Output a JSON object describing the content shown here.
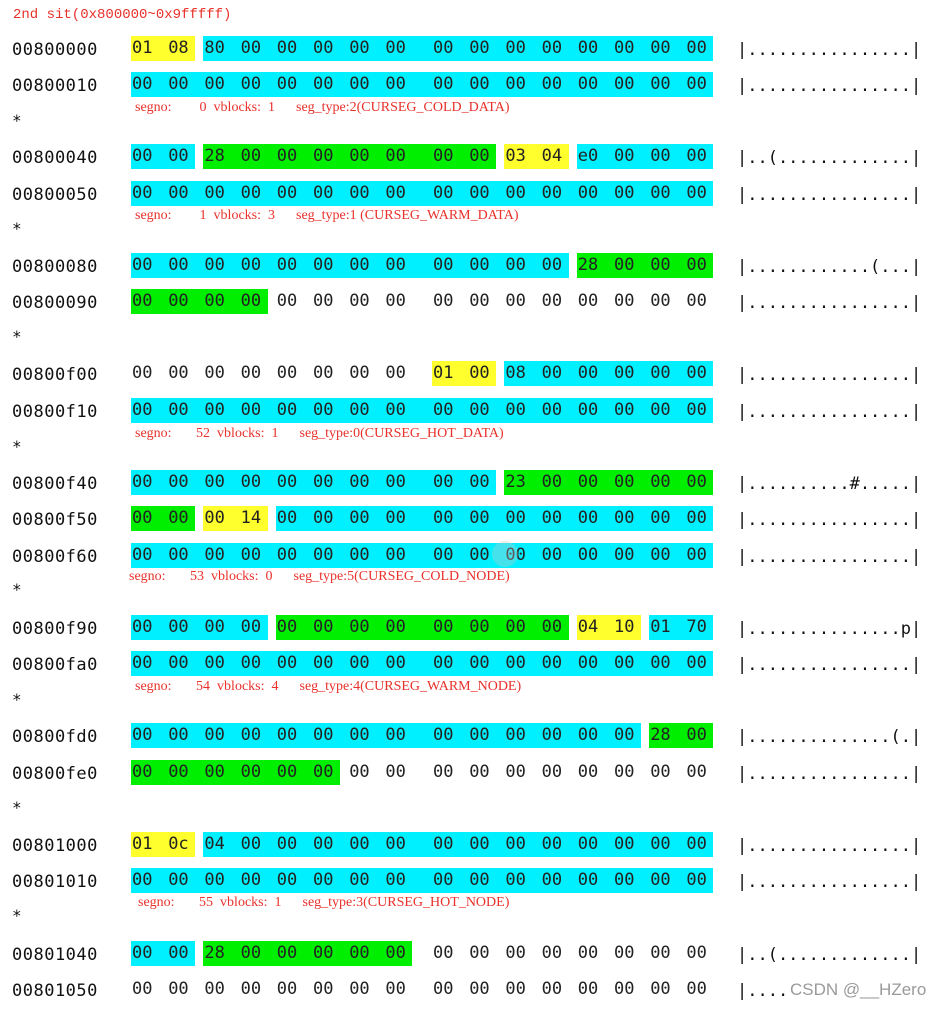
{
  "title": "2nd sit(0x800000~0x9fffff)",
  "star": "*",
  "watermark": "CSDN @__HZero",
  "colors": {
    "c": "#00f0ff",
    "g": "#00ee00",
    "y": "#ffff2e",
    "annotation": "#e8312a"
  },
  "rows": [
    {
      "addr": "00800000",
      "bytes": [
        "01",
        "08",
        "80",
        "00",
        "00",
        "00",
        "00",
        "00",
        "00",
        "00",
        "00",
        "00",
        "00",
        "00",
        "00",
        "00"
      ],
      "hl": "yycccccccccccccc",
      "ascii": "|................|"
    },
    {
      "addr": "00800010",
      "bytes": [
        "00",
        "00",
        "00",
        "00",
        "00",
        "00",
        "00",
        "00",
        "00",
        "00",
        "00",
        "00",
        "00",
        "00",
        "00",
        "00"
      ],
      "hl": "cccccccccccccccc",
      "ascii": "|................|"
    },
    {
      "addr": "00800040",
      "bytes": [
        "00",
        "00",
        "28",
        "00",
        "00",
        "00",
        "00",
        "00",
        "00",
        "00",
        "03",
        "04",
        "e0",
        "00",
        "00",
        "00"
      ],
      "hl": "ccggggggggyycccc",
      "ascii": "|..(.............|"
    },
    {
      "addr": "00800050",
      "bytes": [
        "00",
        "00",
        "00",
        "00",
        "00",
        "00",
        "00",
        "00",
        "00",
        "00",
        "00",
        "00",
        "00",
        "00",
        "00",
        "00"
      ],
      "hl": "cccccccccccccccc",
      "ascii": "|................|"
    },
    {
      "addr": "00800080",
      "bytes": [
        "00",
        "00",
        "00",
        "00",
        "00",
        "00",
        "00",
        "00",
        "00",
        "00",
        "00",
        "00",
        "28",
        "00",
        "00",
        "00"
      ],
      "hl": "ccccccccccccgggg",
      "ascii": "|............(...|"
    },
    {
      "addr": "00800090",
      "bytes": [
        "00",
        "00",
        "00",
        "00",
        "00",
        "00",
        "00",
        "00",
        "00",
        "00",
        "00",
        "00",
        "00",
        "00",
        "00",
        "00"
      ],
      "hl": "gggg............",
      "ascii": "|................|"
    },
    {
      "addr": "00800f00",
      "bytes": [
        "00",
        "00",
        "00",
        "00",
        "00",
        "00",
        "00",
        "00",
        "01",
        "00",
        "08",
        "00",
        "00",
        "00",
        "00",
        "00"
      ],
      "hl": "........yycccccc",
      "ascii": "|................|"
    },
    {
      "addr": "00800f10",
      "bytes": [
        "00",
        "00",
        "00",
        "00",
        "00",
        "00",
        "00",
        "00",
        "00",
        "00",
        "00",
        "00",
        "00",
        "00",
        "00",
        "00"
      ],
      "hl": "cccccccccccccccc",
      "ascii": "|................|"
    },
    {
      "addr": "00800f40",
      "bytes": [
        "00",
        "00",
        "00",
        "00",
        "00",
        "00",
        "00",
        "00",
        "00",
        "00",
        "23",
        "00",
        "00",
        "00",
        "00",
        "00"
      ],
      "hl": "ccccccccccgggggg",
      "ascii": "|..........#.....|"
    },
    {
      "addr": "00800f50",
      "bytes": [
        "00",
        "00",
        "00",
        "14",
        "00",
        "00",
        "00",
        "00",
        "00",
        "00",
        "00",
        "00",
        "00",
        "00",
        "00",
        "00"
      ],
      "hl": "ggyycccccccccccc",
      "ascii": "|................|"
    },
    {
      "addr": "00800f60",
      "bytes": [
        "00",
        "00",
        "00",
        "00",
        "00",
        "00",
        "00",
        "00",
        "00",
        "00",
        "00",
        "00",
        "00",
        "00",
        "00",
        "00"
      ],
      "hl": "cccccccccccccccc",
      "ascii": "|................|"
    },
    {
      "addr": "00800f90",
      "bytes": [
        "00",
        "00",
        "00",
        "00",
        "00",
        "00",
        "00",
        "00",
        "00",
        "00",
        "00",
        "00",
        "04",
        "10",
        "01",
        "70"
      ],
      "hl": "ccccggggggggyycc",
      "ascii": "|...............p|"
    },
    {
      "addr": "00800fa0",
      "bytes": [
        "00",
        "00",
        "00",
        "00",
        "00",
        "00",
        "00",
        "00",
        "00",
        "00",
        "00",
        "00",
        "00",
        "00",
        "00",
        "00"
      ],
      "hl": "cccccccccccccccc",
      "ascii": "|................|"
    },
    {
      "addr": "00800fd0",
      "bytes": [
        "00",
        "00",
        "00",
        "00",
        "00",
        "00",
        "00",
        "00",
        "00",
        "00",
        "00",
        "00",
        "00",
        "00",
        "28",
        "00"
      ],
      "hl": "ccccccccccccccgg",
      "ascii": "|..............(.|"
    },
    {
      "addr": "00800fe0",
      "bytes": [
        "00",
        "00",
        "00",
        "00",
        "00",
        "00",
        "00",
        "00",
        "00",
        "00",
        "00",
        "00",
        "00",
        "00",
        "00",
        "00"
      ],
      "hl": "gggggg..........",
      "ascii": "|................|"
    },
    {
      "addr": "00801000",
      "bytes": [
        "01",
        "0c",
        "04",
        "00",
        "00",
        "00",
        "00",
        "00",
        "00",
        "00",
        "00",
        "00",
        "00",
        "00",
        "00",
        "00"
      ],
      "hl": "yycccccccccccccc",
      "ascii": "|................|"
    },
    {
      "addr": "00801010",
      "bytes": [
        "00",
        "00",
        "00",
        "00",
        "00",
        "00",
        "00",
        "00",
        "00",
        "00",
        "00",
        "00",
        "00",
        "00",
        "00",
        "00"
      ],
      "hl": "cccccccccccccccc",
      "ascii": "|................|"
    },
    {
      "addr": "00801040",
      "bytes": [
        "00",
        "00",
        "28",
        "00",
        "00",
        "00",
        "00",
        "00",
        "00",
        "00",
        "00",
        "00",
        "00",
        "00",
        "00",
        "00"
      ],
      "hl": "ccgggggg........",
      "ascii": "|..(.............|"
    },
    {
      "addr": "00801050",
      "bytes": [
        "00",
        "00",
        "00",
        "00",
        "00",
        "00",
        "00",
        "00",
        "00",
        "00",
        "00",
        "00",
        "00",
        "00",
        "00",
        "00"
      ],
      "hl": "................",
      "ascii": "|....CSDN @__HZero|"
    }
  ],
  "stars": [
    {
      "seg": "segno:        0  vblocks:  1      seg_type:2(CURSEG_COLD_DATA)"
    },
    {
      "seg": "segno:        1  vblocks:  3      seg_type:1 (CURSEG_WARM_DATA)"
    },
    {
      "seg": ""
    },
    {
      "seg": "segno:       52  vblocks:  1      seg_type:0(CURSEG_HOT_DATA)"
    },
    {
      "seg": "segno:       53  vblocks:  0      seg_type:5(CURSEG_COLD_NODE)"
    },
    {
      "seg": "segno:       54  vblocks:  4      seg_type:4(CURSEG_WARM_NODE)"
    },
    {
      "seg": ""
    },
    {
      "seg": "segno:       55  vblocks:  1      seg_type:3(CURSEG_HOT_NODE)"
    }
  ]
}
